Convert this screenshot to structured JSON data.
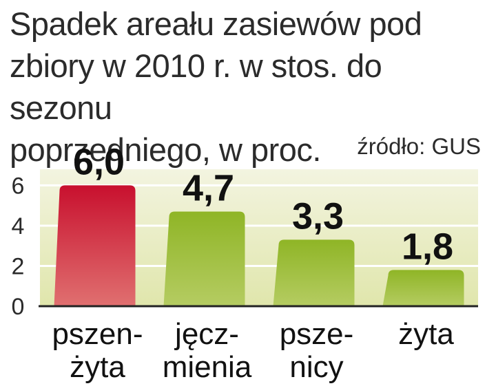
{
  "chart_data": {
    "type": "bar",
    "title": "Spadek areału zasiewów pod\nzbiory w 2010 r. w stos. do sezonu\npoprzedniego, w proc.",
    "source": "źródło: GUS",
    "categories": [
      [
        "pszen-",
        "żyta"
      ],
      [
        "jęcz-",
        "mienia"
      ],
      [
        "psze-",
        "nicy"
      ],
      [
        "żyta"
      ]
    ],
    "values": [
      6.0,
      4.7,
      3.3,
      1.8
    ],
    "value_labels": [
      "6,0",
      "4,7",
      "3,3",
      "1,8"
    ],
    "yticks": [
      "0",
      "2",
      "4",
      "6"
    ],
    "ylim": [
      0,
      6.8
    ],
    "grid": true,
    "colors": {
      "highlight_bar": "#c8102e",
      "bar": "#8db52a",
      "plot_background_top": "#f0f2d8",
      "plot_background_bottom": "#e2e8b0",
      "gridline": "#ffffff",
      "baseline": "#222222"
    }
  }
}
